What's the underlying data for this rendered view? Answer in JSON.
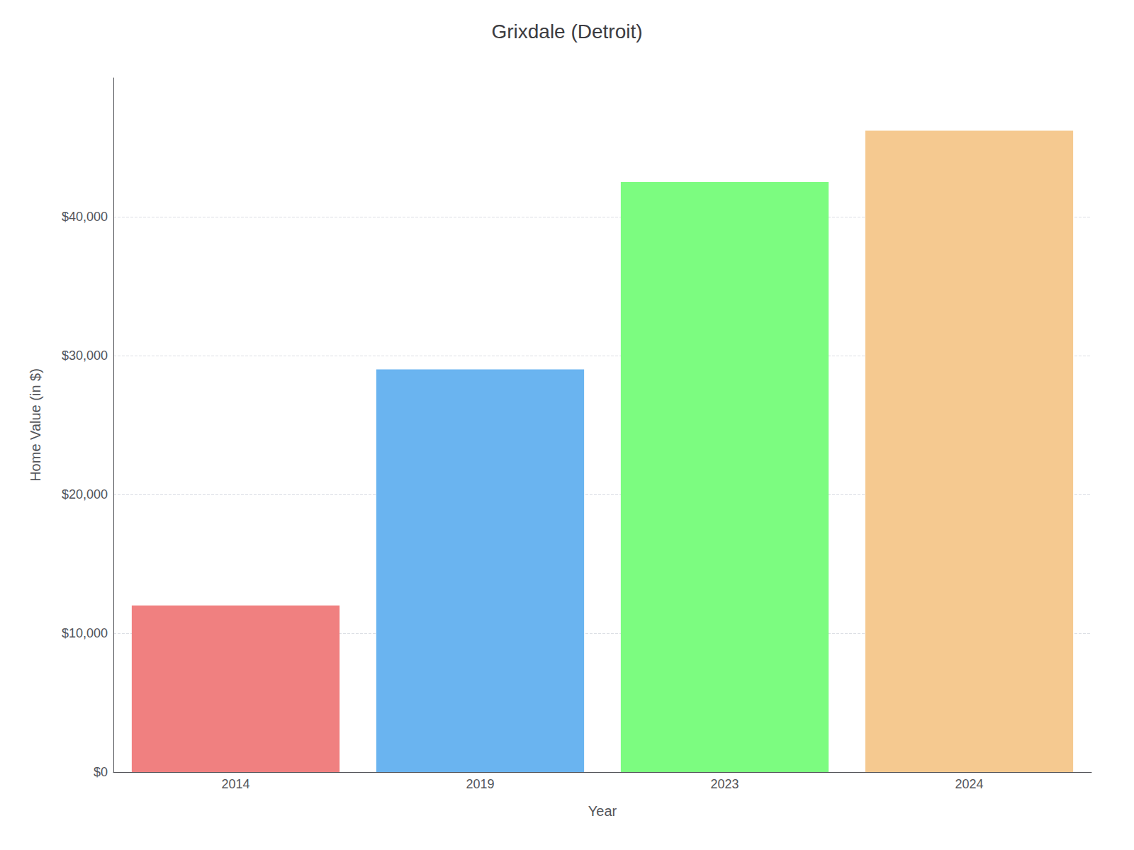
{
  "chart_data": {
    "type": "bar",
    "title": "Grixdale (Detroit)",
    "xlabel": "Year",
    "ylabel": "Home Value (in $)",
    "categories": [
      "2014",
      "2019",
      "2023",
      "2024"
    ],
    "values": [
      12000,
      29000,
      42500,
      46200
    ],
    "colors": [
      "#F08080",
      "#6AB4F0",
      "#7CFC80",
      "#F5C990"
    ],
    "ylim": [
      0,
      50000
    ],
    "yticks": [
      {
        "value": 0,
        "label": "$0"
      },
      {
        "value": 10000,
        "label": "$10,000"
      },
      {
        "value": 20000,
        "label": "$20,000"
      },
      {
        "value": 30000,
        "label": "$30,000"
      },
      {
        "value": 40000,
        "label": "$40,000"
      }
    ],
    "grid": true
  }
}
